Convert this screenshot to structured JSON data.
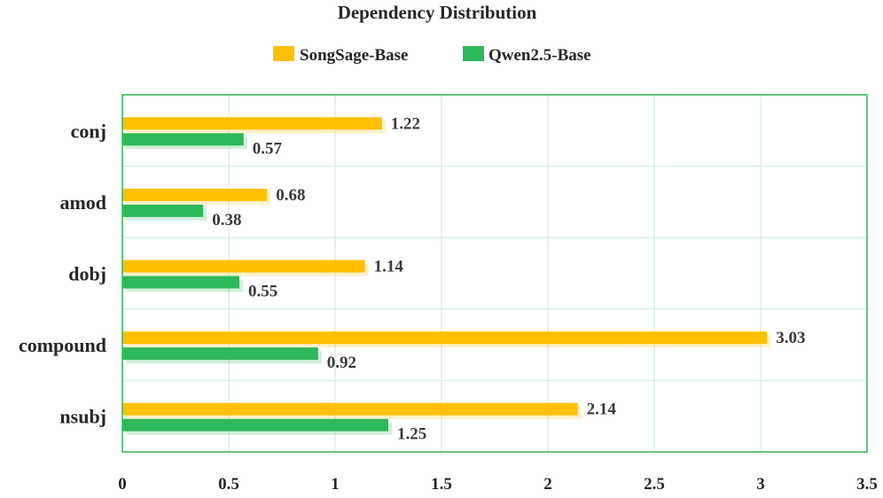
{
  "chart_data": {
    "type": "bar",
    "orientation": "horizontal",
    "title": "Dependency Distribution",
    "categories": [
      "conj",
      "amod",
      "dobj",
      "compound",
      "nsubj"
    ],
    "series": [
      {
        "name": "SongSage-Base",
        "values": [
          1.22,
          0.68,
          1.14,
          3.03,
          2.14
        ],
        "color": "#FFC000"
      },
      {
        "name": "Qwen2.5-Base",
        "values": [
          0.57,
          0.38,
          0.55,
          0.92,
          1.25
        ],
        "color": "#2DB85A"
      }
    ],
    "xlim": [
      0,
      3.5
    ],
    "xticks": [
      "0",
      "0.5",
      "1",
      "1.5",
      "2",
      "2.5",
      "3",
      "3.5"
    ],
    "grid": true,
    "legend_position": "top-center",
    "frame_color": "#3CB95E",
    "grid_color": "#D3EEDC"
  }
}
